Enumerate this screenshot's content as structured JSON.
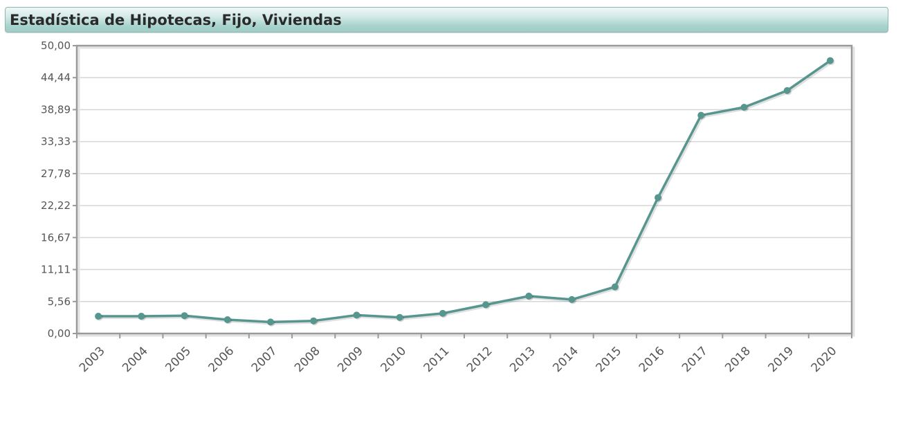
{
  "header": {
    "title": "Estadística de Hipotecas, Fijo, Viviendas"
  },
  "chart_data": {
    "type": "line",
    "title": "Estadística de Hipotecas, Fijo, Viviendas",
    "categories": [
      "2003",
      "2004",
      "2005",
      "2006",
      "2007",
      "2008",
      "2009",
      "2010",
      "2011",
      "2012",
      "2013",
      "2014",
      "2015",
      "2016",
      "2017",
      "2018",
      "2019",
      "2020"
    ],
    "series": [
      {
        "values": [
          3.0,
          3.0,
          3.1,
          2.4,
          2.0,
          2.2,
          3.2,
          2.8,
          3.5,
          5.0,
          6.5,
          5.9,
          8.1,
          23.6,
          37.9,
          39.3,
          42.2,
          47.4
        ]
      }
    ],
    "ylim": [
      0,
      50
    ],
    "yticks": [
      "0,00",
      "5,56",
      "11,11",
      "16,67",
      "22,22",
      "27,78",
      "33,33",
      "38,89",
      "44,44",
      "50,00"
    ],
    "grid": true,
    "colors": {
      "line": "#56968f",
      "grid": "#d6d6d6",
      "frame": "#999999"
    }
  }
}
